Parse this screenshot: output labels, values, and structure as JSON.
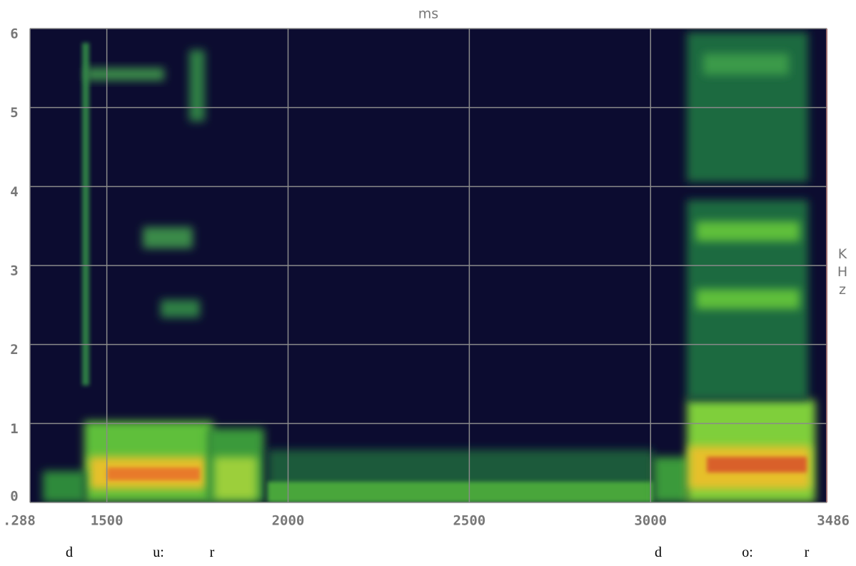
{
  "chart_data": {
    "type": "spectrogram",
    "x_label": "ms",
    "y_label": "KHz",
    "xlim": [
      1288,
      3486
    ],
    "xticks": [
      {
        "value": 1288,
        "label": ".288"
      },
      1500,
      2000,
      2500,
      3000,
      3486
    ],
    "ylim": [
      0,
      6
    ],
    "yticks": [
      0,
      1,
      2,
      3,
      4,
      5,
      6
    ],
    "grid": true,
    "annotations": [
      "d",
      "u:",
      "r",
      "d",
      "o:",
      "r"
    ]
  }
}
